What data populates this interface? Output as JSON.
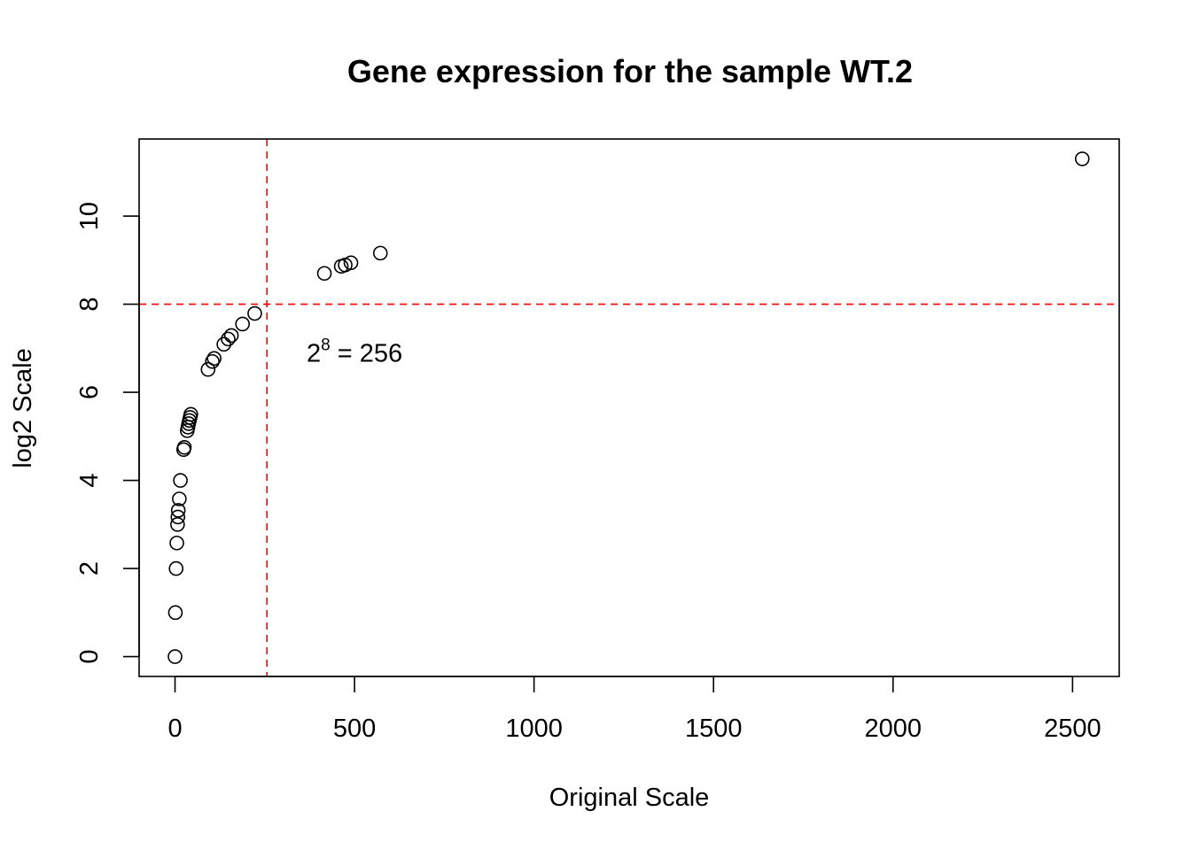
{
  "chart_data": {
    "type": "scatter",
    "title": "Gene expression for the sample WT.2",
    "xlabel": "Original Scale",
    "ylabel": "log2 Scale",
    "xlim": [
      -100,
      2630
    ],
    "ylim": [
      -0.45,
      11.75
    ],
    "x_ticks": [
      0,
      500,
      1000,
      1500,
      2000,
      2500
    ],
    "x_tick_labels": [
      "0",
      "500",
      "1000",
      "1500",
      "2000",
      "2500"
    ],
    "y_ticks": [
      0,
      2,
      4,
      6,
      8,
      10
    ],
    "y_tick_labels": [
      "0",
      "2",
      "4",
      "6",
      "8",
      "10"
    ],
    "grid": false,
    "legend": "none",
    "marker": "open-circle",
    "point_color": "#000000",
    "reference_line_color": "#ff0000",
    "vline_x": 256,
    "hline_y": 8,
    "annotation": {
      "base": "2",
      "exponent": "8",
      "rest": " = 256",
      "x": 500,
      "y": 6.9
    },
    "points": [
      {
        "x": 0,
        "y": 0
      },
      {
        "x": 1,
        "y": 1
      },
      {
        "x": 3,
        "y": 2
      },
      {
        "x": 5,
        "y": 2.58
      },
      {
        "x": 7,
        "y": 3
      },
      {
        "x": 8,
        "y": 3.17
      },
      {
        "x": 9,
        "y": 3.32
      },
      {
        "x": 12,
        "y": 3.58
      },
      {
        "x": 15,
        "y": 4
      },
      {
        "x": 24,
        "y": 4.7
      },
      {
        "x": 26,
        "y": 4.75
      },
      {
        "x": 34,
        "y": 5.13
      },
      {
        "x": 36,
        "y": 5.21
      },
      {
        "x": 38,
        "y": 5.29
      },
      {
        "x": 40,
        "y": 5.36
      },
      {
        "x": 42,
        "y": 5.43
      },
      {
        "x": 44,
        "y": 5.5
      },
      {
        "x": 92,
        "y": 6.52
      },
      {
        "x": 104,
        "y": 6.7
      },
      {
        "x": 109,
        "y": 6.77
      },
      {
        "x": 136,
        "y": 7.09
      },
      {
        "x": 148,
        "y": 7.21
      },
      {
        "x": 157,
        "y": 7.29
      },
      {
        "x": 188,
        "y": 7.55
      },
      {
        "x": 222,
        "y": 7.79
      },
      {
        "x": 416,
        "y": 8.7
      },
      {
        "x": 463,
        "y": 8.86
      },
      {
        "x": 474,
        "y": 8.89
      },
      {
        "x": 490,
        "y": 8.94
      },
      {
        "x": 572,
        "y": 9.16
      },
      {
        "x": 2527,
        "y": 11.3
      }
    ]
  }
}
